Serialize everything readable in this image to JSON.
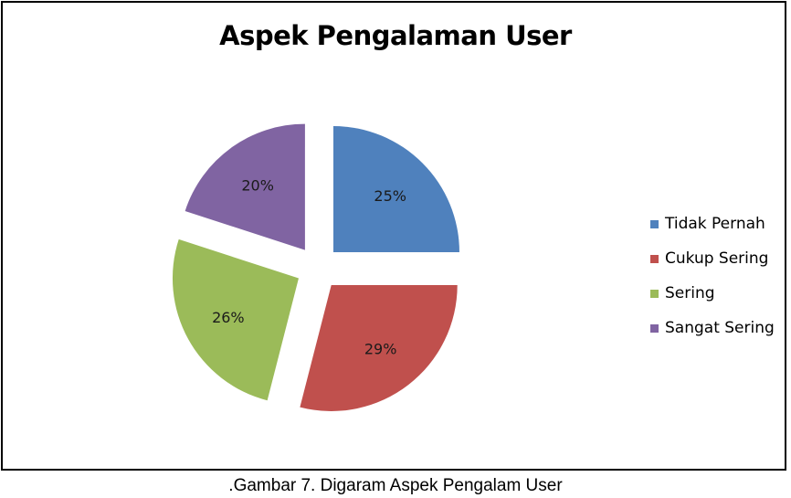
{
  "chart_data": {
    "type": "pie",
    "title": "Aspek Pengalaman User",
    "categories": [
      "Tidak Pernah",
      "Cukup Sering",
      "Sering",
      "Sangat Sering"
    ],
    "values": [
      25,
      29,
      26,
      20
    ],
    "labels": [
      "25%",
      "29%",
      "26%",
      "20%"
    ],
    "colors": [
      "#4f81bd",
      "#c0504d",
      "#9bbb59",
      "#8064a2"
    ],
    "legend_position": "right",
    "exploded": true
  },
  "caption": ".Gambar 7. Digaram Aspek Pengalam User"
}
